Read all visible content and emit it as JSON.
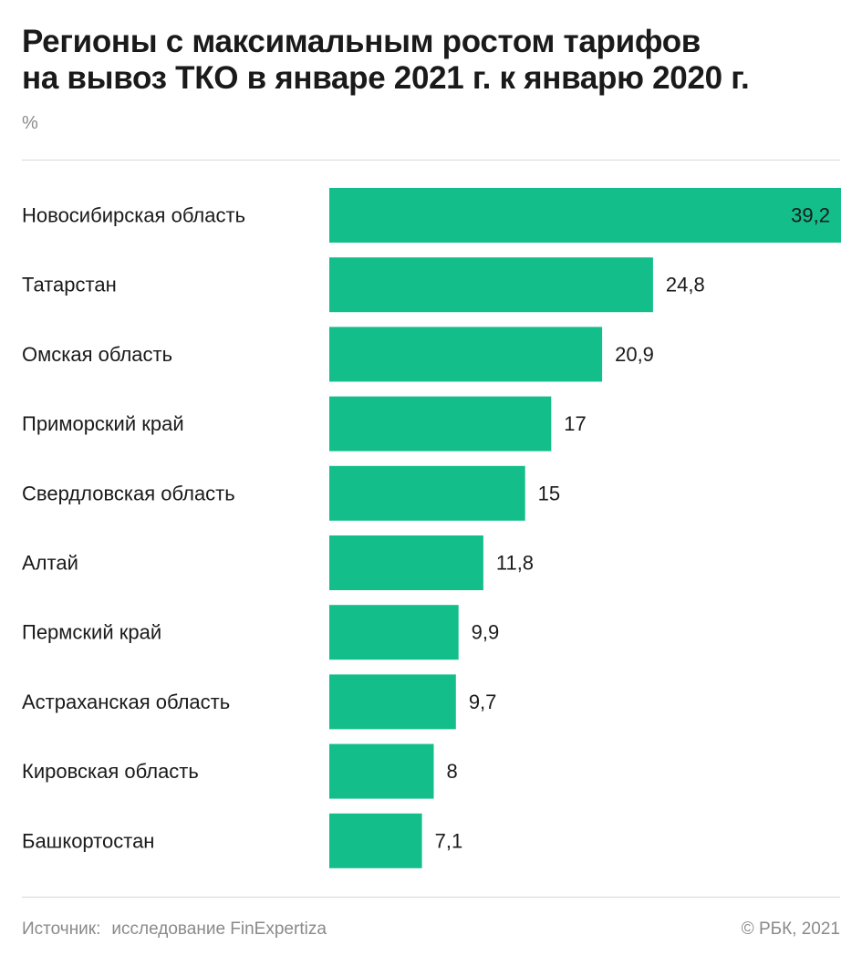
{
  "title_line1": "Регионы с максимальным ростом тарифов",
  "title_line2": "на вывоз ТКО в январе 2021 г. к январю 2020 г.",
  "unit": "%",
  "source_label": "Источник:",
  "source_text": "исследование FinExpertiza",
  "copyright": "© РБК, 2021",
  "colors": {
    "bar": "#13be8a",
    "text": "#1a1a1a",
    "muted": "#8a8a8a"
  },
  "chart_data": {
    "type": "bar",
    "orientation": "horizontal",
    "categories": [
      "Новосибирская область",
      "Татарстан",
      "Омская область",
      "Приморский край",
      "Свердловская область",
      "Алтай",
      "Пермский край",
      "Астраханская область",
      "Кировская область",
      "Башкортостан"
    ],
    "values": [
      39.2,
      24.8,
      20.9,
      17,
      15,
      11.8,
      9.9,
      9.7,
      8,
      7.1
    ],
    "value_labels": [
      "39,2",
      "24,8",
      "20,9",
      "17",
      "15",
      "11,8",
      "9,9",
      "9,7",
      "8",
      "7,1"
    ],
    "title": "Регионы с максимальным ростом тарифов на вывоз ТКО в январе 2021 г. к январю 2020 г.",
    "xlabel": "",
    "ylabel": "%",
    "xlim": [
      0,
      39.2
    ],
    "grid": false,
    "legend": "none"
  }
}
